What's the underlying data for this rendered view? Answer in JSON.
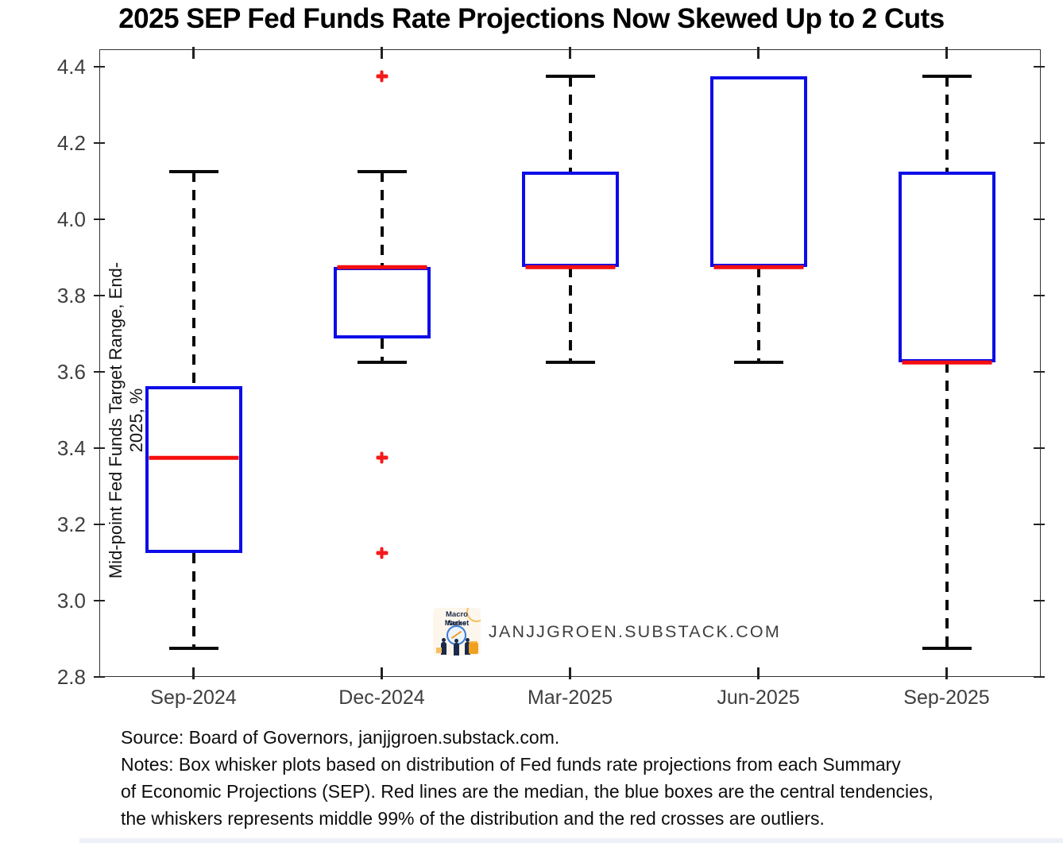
{
  "title": "2025 SEP Fed Funds Rate Projections Now Skewed Up to 2 Cuts",
  "chart_data": {
    "type": "boxplot",
    "title": "2025 SEP Fed Funds Rate Projections Now Skewed Up to 2 Cuts",
    "ylabel": "Mid-point Fed Funds Target Range, End- 2025, %",
    "xlabel": "",
    "ylim": [
      2.8,
      4.446
    ],
    "yticks": [
      2.8,
      3.0,
      3.2,
      3.4,
      3.6,
      3.8,
      4.0,
      4.2,
      4.4
    ],
    "grid": false,
    "legend": "none",
    "categories": [
      "Sep-2024",
      "Dec-2024",
      "Mar-2025",
      "Jun-2025",
      "Sep-2025"
    ],
    "boxes": [
      {
        "label": "Sep-2024",
        "whisker_low": 2.875,
        "q1": 3.125,
        "median": 3.375,
        "q3": 3.5625,
        "whisker_high": 4.125,
        "outliers": []
      },
      {
        "label": "Dec-2024",
        "whisker_low": 3.625,
        "q1": 3.6875,
        "median": 3.875,
        "q3": 3.875,
        "whisker_high": 4.125,
        "outliers": [
          4.375,
          3.375,
          3.125
        ]
      },
      {
        "label": "Mar-2025",
        "whisker_low": 3.625,
        "q1": 3.875,
        "median": 3.875,
        "q3": 4.125,
        "whisker_high": 4.375,
        "outliers": []
      },
      {
        "label": "Jun-2025",
        "whisker_low": 3.625,
        "q1": 3.875,
        "median": 3.875,
        "q3": 4.375,
        "whisker_high": 4.375,
        "outliers": []
      },
      {
        "label": "Sep-2025",
        "whisker_low": 2.875,
        "q1": 3.625,
        "median": 3.625,
        "q3": 4.125,
        "whisker_high": 4.375,
        "outliers": []
      }
    ],
    "colors": {
      "box": "#0d0de8",
      "median": "#f50f0f",
      "whisker": "#0a0a0a",
      "outlier": "#f51a1a",
      "axis": "#333333",
      "tick_text": "#3f3f3f"
    }
  },
  "watermark": {
    "logo_line1": "Macro Market",
    "logo_line2": "Notes",
    "site": "JANJJGROEN.SUBSTACK.COM"
  },
  "footer": {
    "line1": "Source: Board of Governors, janjjgroen.substack.com.",
    "line2": "Notes: Box whisker plots based on distribution of Fed funds rate projections from each Summary",
    "line3": "of Economic Projections (SEP). Red lines are the median, the blue boxes are the central tendencies,",
    "line4": "the whiskers represents middle 99% of the distribution and the red crosses are outliers."
  }
}
